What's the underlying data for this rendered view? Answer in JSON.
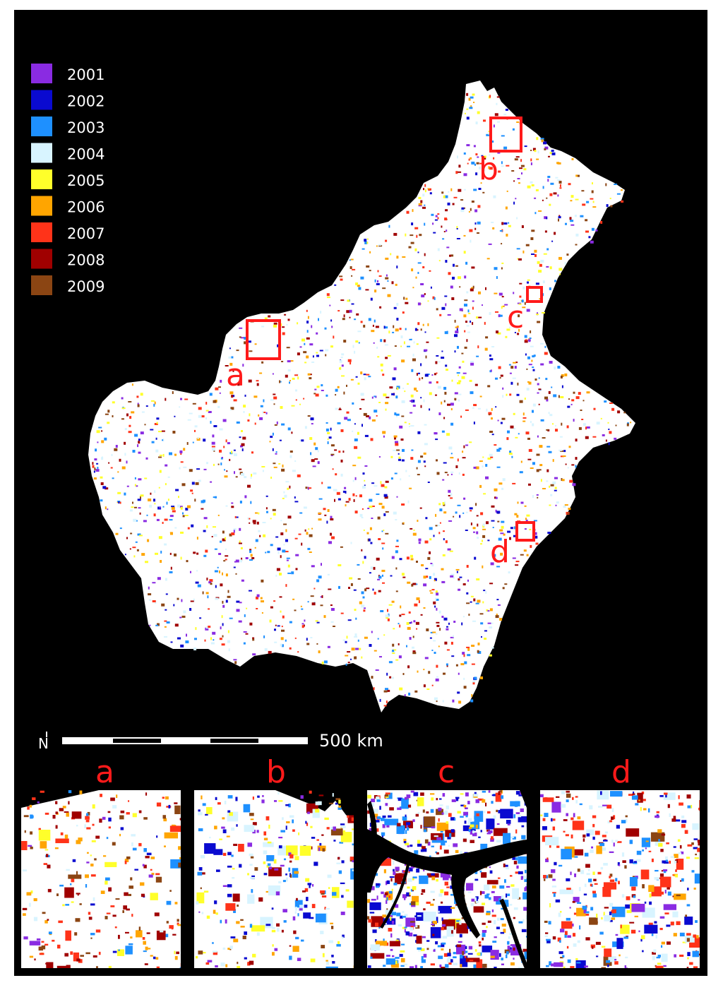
{
  "legend": {
    "items": [
      {
        "year": "2001",
        "color": "#8a2be2"
      },
      {
        "year": "2002",
        "color": "#0a0ad0"
      },
      {
        "year": "2003",
        "color": "#1e90ff"
      },
      {
        "year": "2004",
        "color": "#d8f4ff"
      },
      {
        "year": "2005",
        "color": "#ffff2a"
      },
      {
        "year": "2006",
        "color": "#ffa500"
      },
      {
        "year": "2007",
        "color": "#ff3319"
      },
      {
        "year": "2008",
        "color": "#a00000"
      },
      {
        "year": "2009",
        "color": "#8b4513"
      }
    ]
  },
  "regions": {
    "a": "a",
    "b": "b",
    "c": "c",
    "d": "d"
  },
  "scale_bar": {
    "label": "500  km",
    "north_symbol": "N"
  },
  "insets": [
    {
      "label": "a"
    },
    {
      "label": "b"
    },
    {
      "label": "c"
    },
    {
      "label": "d"
    }
  ],
  "colors": {
    "background": "#000000",
    "land": "#ffffff",
    "highlight": "#ff1a1a"
  }
}
